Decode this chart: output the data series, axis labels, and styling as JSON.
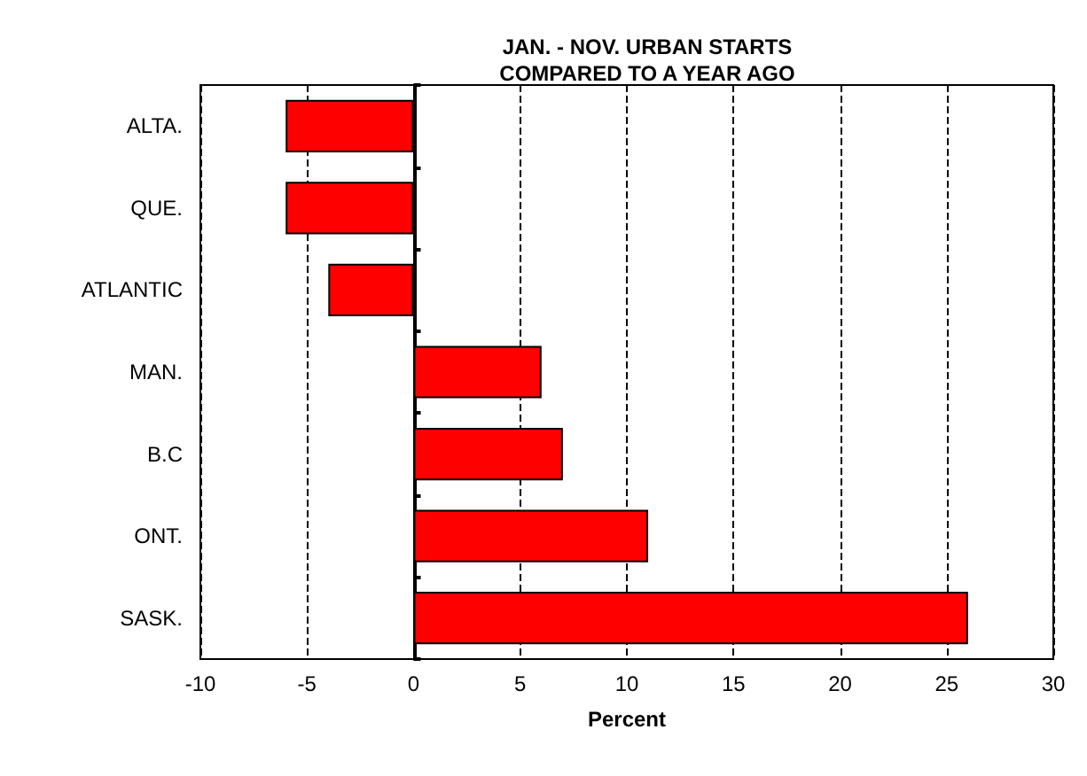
{
  "chart_data": {
    "type": "bar",
    "orientation": "horizontal",
    "title": "JAN. - NOV. URBAN STARTS\nCOMPARED TO A YEAR AGO",
    "xlabel": "Percent",
    "categories": [
      "ALTA.",
      "QUE.",
      "ATLANTIC",
      "MAN.",
      "B.C",
      "ONT.",
      "SASK."
    ],
    "values": [
      -6,
      -6,
      -4,
      6,
      7,
      11,
      26
    ],
    "color": "#ff0000",
    "xlim": [
      -10,
      30
    ],
    "xticks": [
      -10,
      -5,
      0,
      5,
      10,
      15,
      20,
      25,
      30
    ],
    "grid": "x"
  }
}
